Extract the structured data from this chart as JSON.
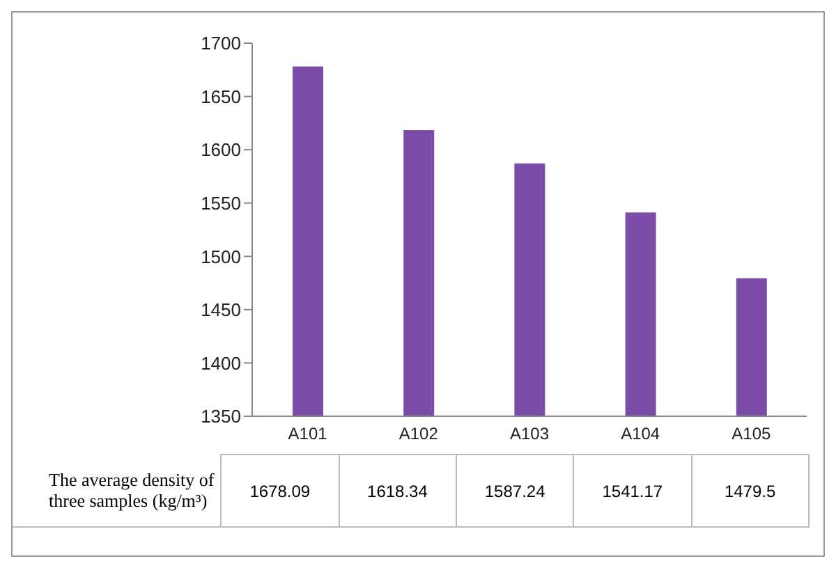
{
  "chart_data": {
    "type": "bar",
    "categories": [
      "A101",
      "A102",
      "A103",
      "A104",
      "A105"
    ],
    "series": [
      {
        "name": "The average density of three samples (kg/m³)",
        "color": "#7b4ca8",
        "values": [
          1678.09,
          1618.34,
          1587.24,
          1541.17,
          1479.5
        ]
      }
    ],
    "ylim": [
      1350,
      1700
    ],
    "yticks": [
      1350,
      1400,
      1450,
      1500,
      1550,
      1600,
      1650,
      1700
    ],
    "grid": false,
    "data_labels": true
  }
}
